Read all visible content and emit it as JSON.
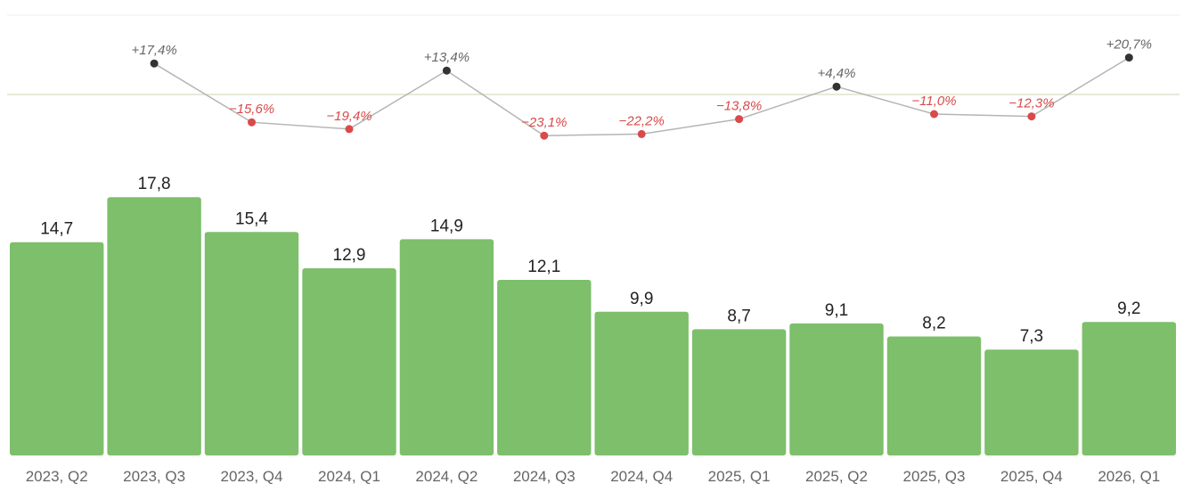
{
  "chart_data": {
    "type": "bar",
    "categories": [
      "2023, Q2",
      "2023, Q3",
      "2023, Q4",
      "2024, Q1",
      "2024, Q2",
      "2024, Q3",
      "2024, Q4",
      "2025, Q1",
      "2025, Q2",
      "2025, Q3",
      "2025, Q4",
      "2026, Q1"
    ],
    "values": [
      14.7,
      17.8,
      15.4,
      12.9,
      14.9,
      12.1,
      9.9,
      8.7,
      9.1,
      8.2,
      7.3,
      9.2
    ],
    "value_labels": [
      "14,7",
      "17,8",
      "15,4",
      "12,9",
      "14,9",
      "12,1",
      "9,9",
      "8,7",
      "9,1",
      "8,2",
      "7,3",
      "9,2"
    ],
    "bar_color": "#7dbf6b",
    "change_series": {
      "type": "line",
      "values": [
        null,
        17.4,
        -15.6,
        -19.4,
        13.4,
        -23.1,
        -22.2,
        -13.8,
        4.4,
        -11.0,
        -12.3,
        20.7
      ],
      "labels": [
        "",
        "+17,4%",
        "−15,6%",
        "−19,4%",
        "+13,4%",
        "−23,1%",
        "−22,2%",
        "−13,8%",
        "+4,4%",
        "−11,0%",
        "−12,3%",
        "+20,7%"
      ],
      "positive_color": "#333333",
      "negative_color": "#d94a4a",
      "line_color": "#b5b5b5",
      "zero_line_color": "#dde3cc"
    },
    "title": "",
    "xlabel": "",
    "ylabel": "",
    "ylim": [
      0,
      18
    ]
  }
}
